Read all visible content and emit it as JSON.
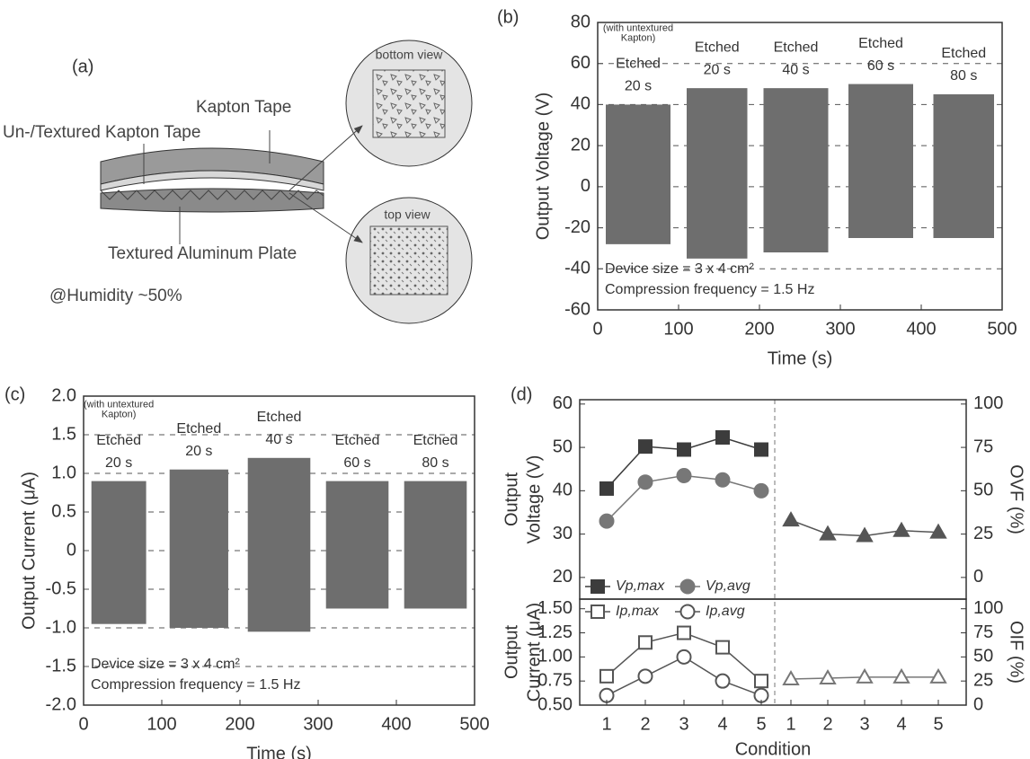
{
  "panel_a": {
    "label": "(a)",
    "bottom_view": "bottom view",
    "kapton_tape": "Kapton Tape",
    "untextured_tape": "Un-/Textured Kapton Tape",
    "top_view": "top view",
    "aluminum_plate": "Textured Aluminum Plate",
    "humidity": "@Humidity ~50%"
  },
  "chart_data": [
    {
      "type": "signal",
      "label": "(b)",
      "xlabel": "Time (s)",
      "ylabel": "Output Voltage (V)",
      "xlim": [
        0,
        500
      ],
      "xticks": [
        0,
        100,
        200,
        300,
        400,
        500
      ],
      "ylim": [
        -60,
        80
      ],
      "yticks": [
        -60,
        -40,
        -20,
        0,
        20,
        40,
        60,
        80
      ],
      "grid": "dashed",
      "annotations": [
        "Device size = 3 x 4 cm²",
        "Compression frequency = 1.5 Hz"
      ],
      "series": [
        {
          "label": [
            "Etched",
            "20 s"
          ],
          "note": [
            "(with untextured",
            "Kapton)"
          ],
          "color": "#6e6e6e",
          "x": [
            10,
            90
          ],
          "values": [
            -28,
            40
          ]
        },
        {
          "label": [
            "Etched",
            "20 s"
          ],
          "color": "#6e6e6e",
          "x": [
            110,
            185
          ],
          "values": [
            -35,
            48
          ]
        },
        {
          "label": [
            "Etched",
            "40 s"
          ],
          "color": "#6e6e6e",
          "x": [
            205,
            285
          ],
          "values": [
            -32,
            48
          ]
        },
        {
          "label": [
            "Etched",
            "60 s"
          ],
          "color": "#6e6e6e",
          "x": [
            310,
            390
          ],
          "values": [
            -25,
            50
          ]
        },
        {
          "label": [
            "Etched",
            "80 s"
          ],
          "color": "#6e6e6e",
          "x": [
            415,
            490
          ],
          "values": [
            -25,
            45
          ]
        }
      ]
    },
    {
      "type": "signal",
      "label": "(c)",
      "xlabel": "Time (s)",
      "ylabel": "Output Current (μA)",
      "xlim": [
        0,
        500
      ],
      "xticks": [
        0,
        100,
        200,
        300,
        400,
        500
      ],
      "ylim": [
        -2,
        2
      ],
      "yticks": [
        {
          "value": -2,
          "label": "-2.0"
        },
        -1.5,
        {
          "value": -1,
          "label": "-1.0"
        },
        -0.5,
        0,
        0.5,
        {
          "value": 1,
          "label": "1.0"
        },
        1.5,
        {
          "value": 2,
          "label": "2.0"
        }
      ],
      "grid": "dashed",
      "annotations": [
        "Device size = 3 x 4 cm²",
        "Compression frequency = 1.5 Hz"
      ],
      "series": [
        {
          "label": [
            "Etched",
            "20 s"
          ],
          "note": [
            "(with untextured",
            "Kapton)"
          ],
          "color": "#6e6e6e",
          "x": [
            10,
            80
          ],
          "values": [
            -0.95,
            0.9
          ]
        },
        {
          "label": [
            "Etched",
            "20 s"
          ],
          "color": "#6e6e6e",
          "x": [
            110,
            185
          ],
          "values": [
            -1.0,
            1.05
          ]
        },
        {
          "label": [
            "Etched",
            "40 s"
          ],
          "color": "#6e6e6e",
          "x": [
            210,
            290
          ],
          "values": [
            -1.05,
            1.2
          ]
        },
        {
          "label": [
            "Etched",
            "60 s"
          ],
          "color": "#6e6e6e",
          "x": [
            310,
            390
          ],
          "values": [
            -0.75,
            0.9
          ]
        },
        {
          "label": [
            "Etched",
            "80 s"
          ],
          "color": "#6e6e6e",
          "x": [
            410,
            490
          ],
          "values": [
            -0.75,
            0.9
          ]
        }
      ]
    },
    {
      "type": "dual-line",
      "label": "(d)",
      "xlabel": "Condition",
      "categories": [
        "1",
        "2",
        "3",
        "4",
        "5",
        "1",
        "2",
        "3",
        "4",
        "5"
      ],
      "panels": [
        {
          "ylabel": [
            "Output",
            "Voltage (V)"
          ],
          "ylim": [
            15,
            61
          ],
          "yticks": [
            20,
            30,
            40,
            50,
            60
          ],
          "y2label": "OVF (%)",
          "y2lim": [
            -12.5,
            102.5
          ],
          "y2ticks": [
            0,
            25,
            50,
            75,
            100
          ],
          "series": [
            {
              "name": "Vp,max",
              "marker": "square",
              "filled": true,
              "color": "#3c3c3c",
              "values": [
                40.5,
                50.2,
                49.5,
                52.3,
                49.5,
                null,
                null,
                null,
                null,
                null
              ]
            },
            {
              "name": "Vp,avg",
              "marker": "circle",
              "filled": true,
              "color": "#777777",
              "values": [
                33,
                42,
                43.5,
                42.5,
                40,
                null,
                null,
                null,
                null,
                null
              ]
            },
            {
              "axis": "y2",
              "marker": "triangle",
              "filled": true,
              "color": "#555555",
              "values": [
                null,
                null,
                null,
                null,
                null,
                33,
                25,
                24,
                27,
                26
              ]
            }
          ]
        },
        {
          "ylabel": [
            "Output",
            "Current (μA)"
          ],
          "ylim": [
            0.5,
            1.6
          ],
          "yticks": [
            {
              "value": 0.5,
              "label": "0.50"
            },
            {
              "value": 0.75,
              "label": "0.75"
            },
            {
              "value": 1,
              "label": "1.00"
            },
            {
              "value": 1.25,
              "label": "1.25"
            },
            {
              "value": 1.5,
              "label": "1.50"
            }
          ],
          "y2label": "OIF (%)",
          "y2lim": [
            0,
            110
          ],
          "y2ticks": [
            0,
            25,
            50,
            75,
            100
          ],
          "series": [
            {
              "name": "Ip,max",
              "marker": "square",
              "filled": false,
              "color": "#555555",
              "values": [
                0.8,
                1.15,
                1.25,
                1.1,
                0.75,
                null,
                null,
                null,
                null,
                null
              ]
            },
            {
              "name": "Ip,avg",
              "marker": "circle",
              "filled": false,
              "color": "#555555",
              "values": [
                0.6,
                0.8,
                1.0,
                0.75,
                0.6,
                null,
                null,
                null,
                null,
                null
              ]
            },
            {
              "axis": "y2",
              "marker": "triangle",
              "filled": false,
              "color": "#777777",
              "values": [
                null,
                null,
                null,
                null,
                null,
                27,
                28,
                29,
                29,
                29
              ]
            }
          ]
        }
      ]
    }
  ]
}
